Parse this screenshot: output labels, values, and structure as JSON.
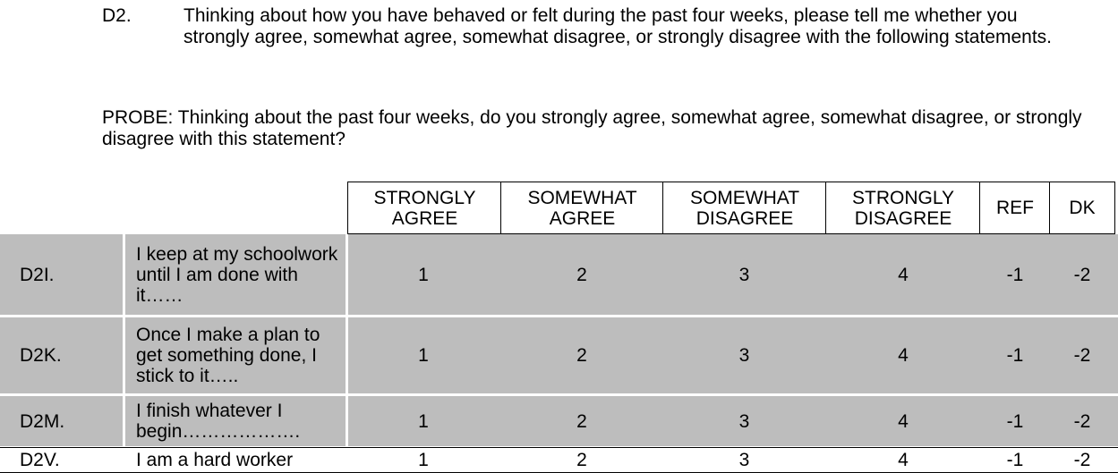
{
  "question": {
    "number": "D2.",
    "text": "Thinking about how you have behaved or felt during the past four weeks, please tell me whether you strongly agree, somewhat agree, somewhat disagree, or strongly disagree with the following statements.",
    "probe": "PROBE: Thinking about the past four weeks, do you strongly agree, somewhat agree, somewhat disagree, or strongly disagree with this statement?"
  },
  "table": {
    "headers": [
      "STRONGLY AGREE",
      "SOMEWHAT AGREE",
      "SOMEWHAT DISAGREE",
      "STRONGLY DISAGREE",
      "REF",
      "DK"
    ],
    "rows": [
      {
        "code": "D2I.",
        "statement": "I keep at my schoolwork until I am done with it……",
        "values": [
          "1",
          "2",
          "3",
          "4",
          "-1",
          "-2"
        ]
      },
      {
        "code": "D2K.",
        "statement": "Once I make a plan to get something done, I stick to it…..",
        "values": [
          "1",
          "2",
          "3",
          "4",
          "-1",
          "-2"
        ]
      },
      {
        "code": "D2M.",
        "statement": "I finish whatever I begin……………….",
        "values": [
          "1",
          "2",
          "3",
          "4",
          "-1",
          "-2"
        ]
      },
      {
        "code": "D2V.",
        "statement": "I am a hard worker",
        "values": [
          "1",
          "2",
          "3",
          "4",
          "-1",
          "-2"
        ]
      }
    ]
  },
  "colors": {
    "shaded_row": "#bdbdbd",
    "text": "#000000"
  }
}
